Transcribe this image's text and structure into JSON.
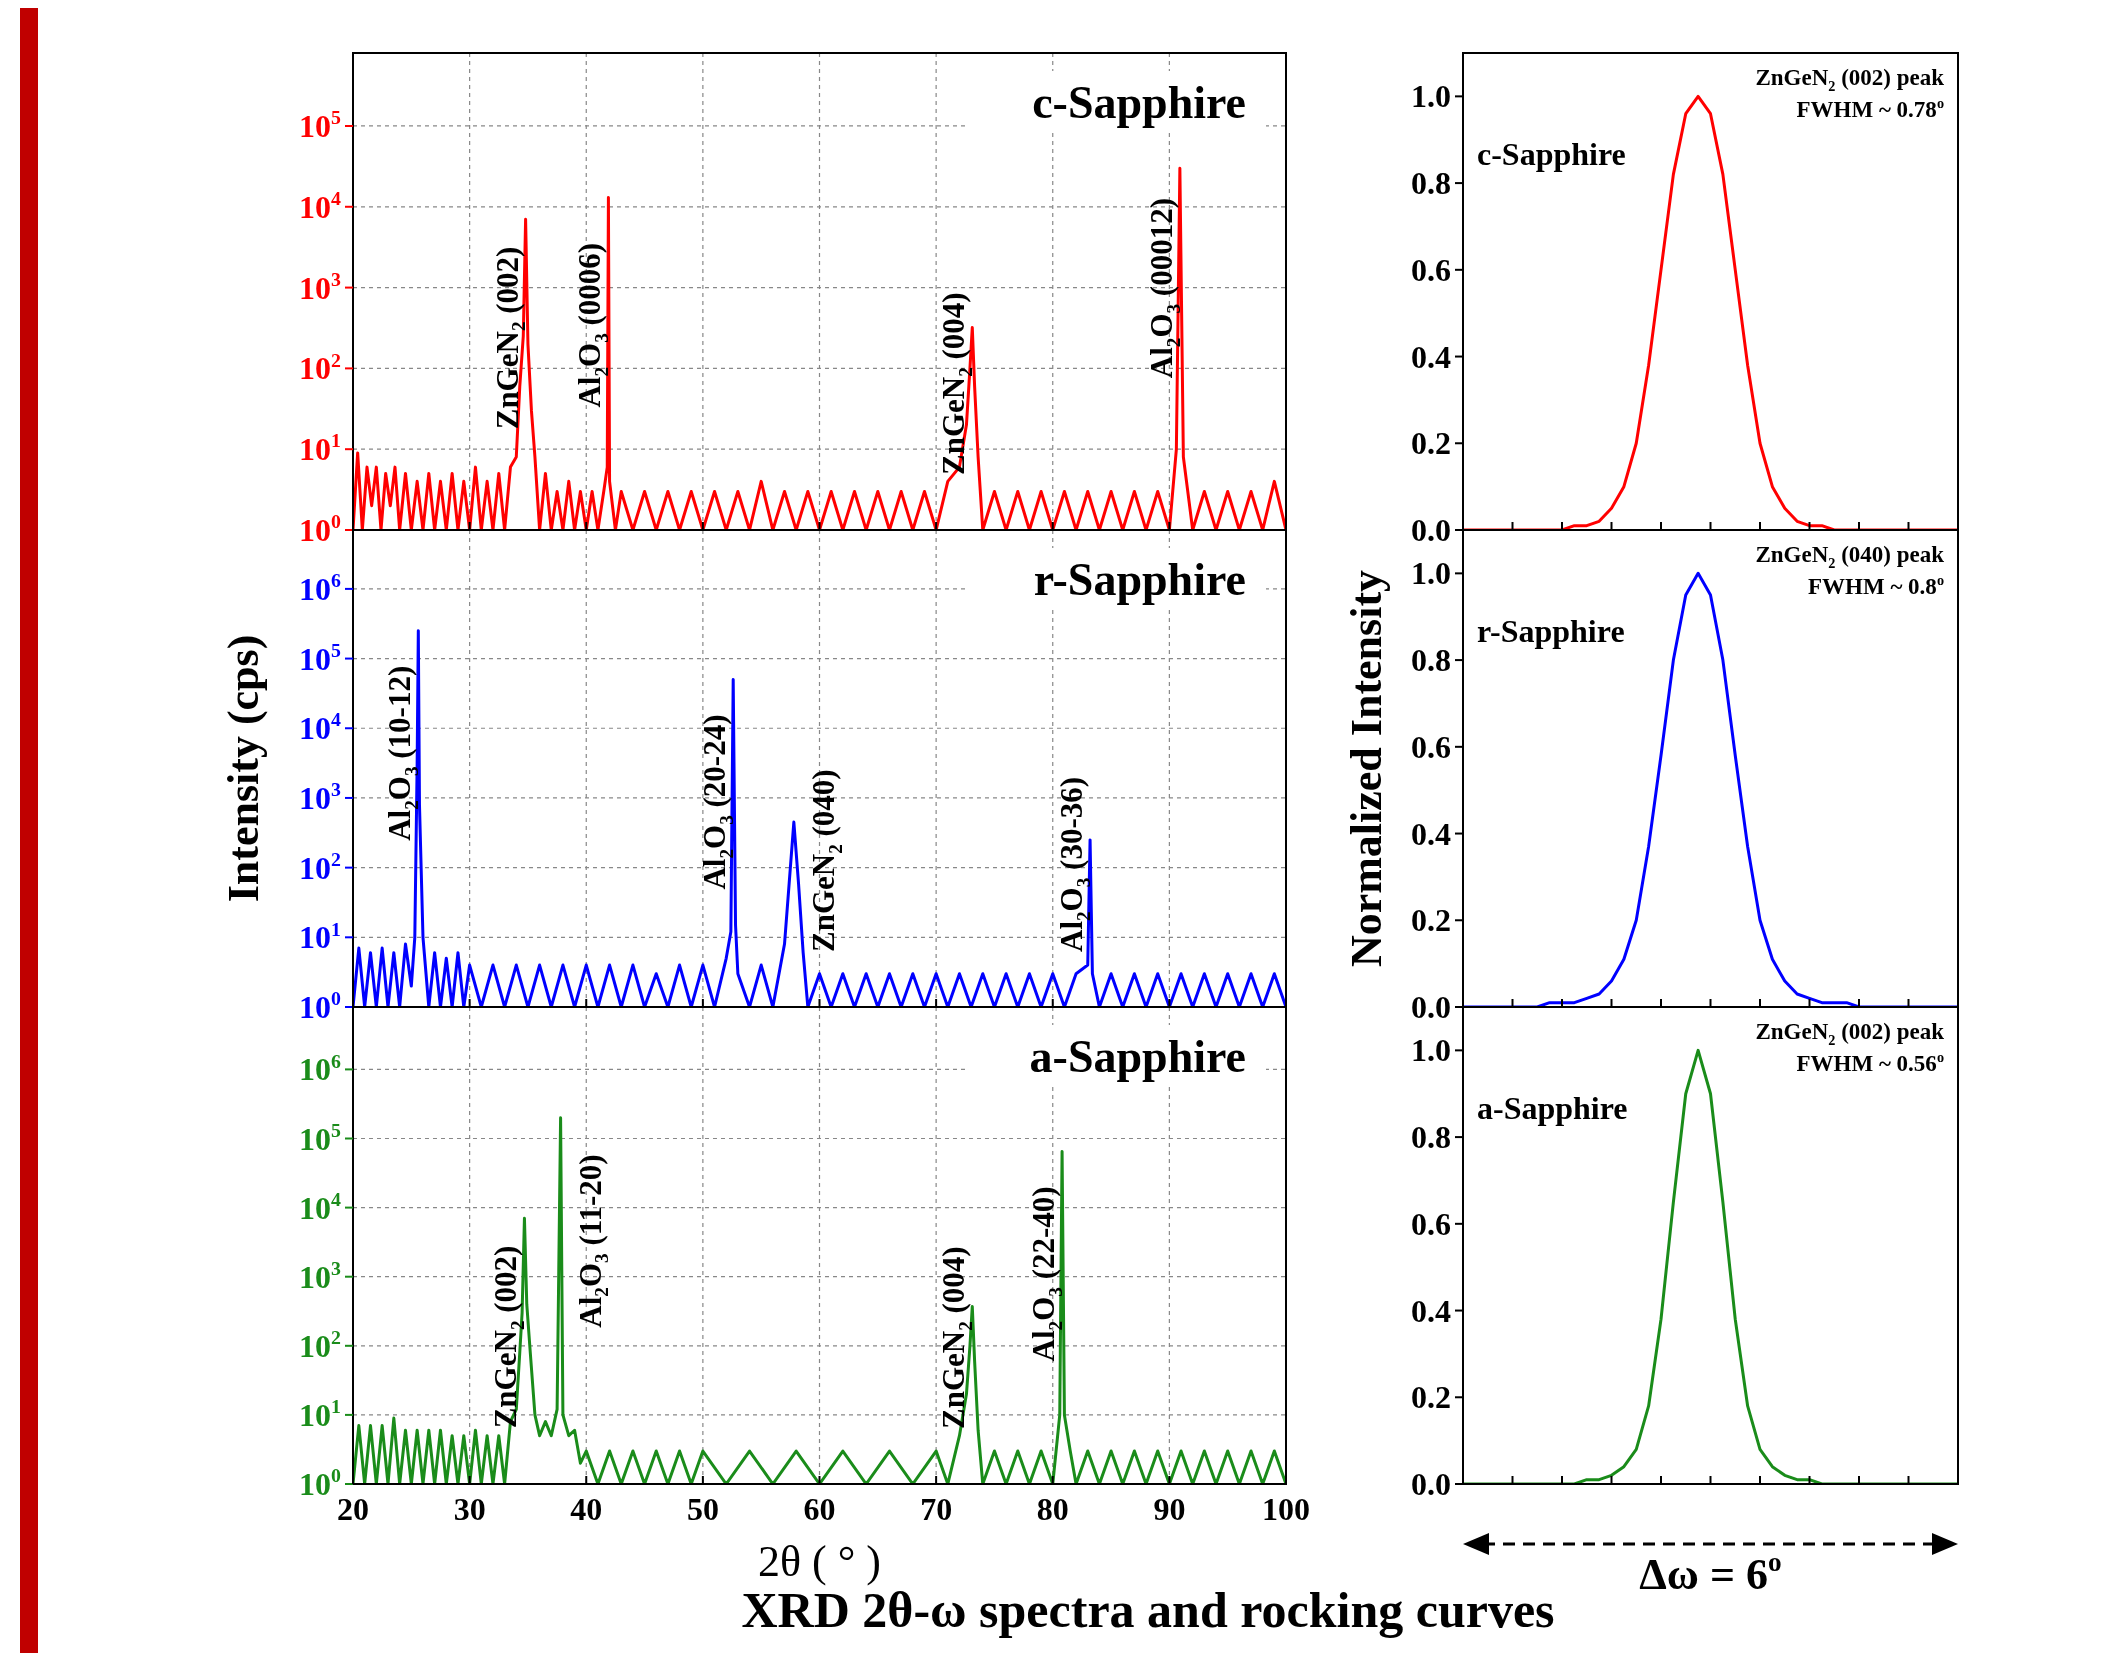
{
  "chart_data": [
    {
      "type": "line",
      "title": "c-Sapphire",
      "log": "y",
      "grid": true,
      "tick_labels": "y",
      "xlim": [
        20,
        100
      ],
      "xticks": [
        20,
        30,
        40,
        50,
        60,
        70,
        80,
        90,
        100
      ],
      "ylim": [
        1,
        800000
      ],
      "yticks": [
        {
          "value": 1,
          "label": "10$^{0}$"
        },
        {
          "value": 10,
          "label": "10$^{1}$"
        },
        {
          "value": 100,
          "label": "10$^{2}$"
        },
        {
          "value": 1000,
          "label": "10$^{3}$"
        },
        {
          "value": 10000,
          "label": "10$^{4}$"
        },
        {
          "value": 100000,
          "label": "10$^{5}$"
        }
      ],
      "series": [
        {
          "color": "#ff0000",
          "x": [
            20,
            20.4,
            20.8,
            21.2,
            21.6,
            22,
            22.4,
            22.8,
            23.2,
            23.6,
            24,
            24.5,
            25,
            25.5,
            26,
            26.5,
            27,
            27.5,
            28,
            28.5,
            29,
            29.5,
            30,
            30.5,
            31,
            31.5,
            32,
            32.5,
            33,
            33.5,
            34,
            34.3,
            34.6,
            34.8,
            35,
            35.3,
            35.6,
            36,
            36.5,
            37,
            37.5,
            38,
            38.5,
            39,
            39.5,
            40,
            40.5,
            41,
            41.5,
            41.8,
            41.9,
            42,
            42.5,
            43,
            44,
            45,
            46,
            47,
            48,
            49,
            50,
            51,
            52,
            53,
            54,
            55,
            56,
            57,
            58,
            59,
            60,
            61,
            62,
            63,
            64,
            65,
            66,
            67,
            68,
            69,
            70,
            71,
            72,
            72.6,
            72.9,
            73.1,
            73.3,
            73.6,
            74,
            75,
            76,
            77,
            78,
            79,
            80,
            81,
            82,
            83,
            84,
            85,
            86,
            87,
            88,
            89,
            90,
            90.6,
            90.9,
            91.2,
            92,
            93,
            94,
            95,
            96,
            97,
            98,
            99,
            100
          ],
          "values": [
            1,
            9,
            1,
            6,
            2,
            6,
            1,
            5,
            2,
            6,
            1,
            5,
            1,
            4,
            1,
            5,
            1,
            4,
            1,
            5,
            1,
            4,
            1,
            6,
            1,
            4,
            1,
            5,
            1,
            6,
            8,
            60,
            250,
            7000,
            200,
            30,
            8,
            1,
            5,
            1,
            3,
            1,
            4,
            1,
            3,
            1,
            3,
            1,
            3,
            6,
            13000,
            4,
            1,
            3,
            1,
            3,
            1,
            3,
            1,
            3,
            1,
            3,
            1,
            3,
            1,
            4,
            1,
            3,
            1,
            3,
            1,
            3,
            1,
            3,
            1,
            3,
            1,
            3,
            1,
            3,
            1,
            4,
            6,
            20,
            100,
            320,
            60,
            8,
            1,
            3,
            1,
            3,
            1,
            3,
            1,
            3,
            1,
            3,
            1,
            3,
            1,
            3,
            1,
            3,
            1,
            10,
            30000,
            8,
            1,
            3,
            1,
            3,
            1,
            3,
            1,
            4,
            1
          ]
        }
      ],
      "annotations": [
        {
          "text": "ZnGeN$_{2}$ (002)",
          "x": 34.8,
          "y": 7000
        },
        {
          "text": "Al$_{2}$O$_{3}$ (0006)",
          "x": 41.9,
          "y": 13000
        },
        {
          "text": "ZnGeN$_{2}$ (004)",
          "x": 73.1,
          "y": 320
        },
        {
          "text": "Al$_{2}$O$_{3}$ (00012)",
          "x": 90.9,
          "y": 30000
        }
      ]
    },
    {
      "type": "line",
      "title": "r-Sapphire",
      "ylabel": "Intensity (cps)",
      "log": "y",
      "grid": true,
      "tick_labels": "y",
      "xlim": [
        20,
        100
      ],
      "xticks": [
        20,
        30,
        40,
        50,
        60,
        70,
        80,
        90,
        100
      ],
      "ylim": [
        1,
        7000000
      ],
      "yticks": [
        {
          "value": 1,
          "label": "10$^{0}$"
        },
        {
          "value": 10,
          "label": "10$^{1}$"
        },
        {
          "value": 100,
          "label": "10$^{2}$"
        },
        {
          "value": 1000,
          "label": "10$^{3}$"
        },
        {
          "value": 10000,
          "label": "10$^{4}$"
        },
        {
          "value": 100000,
          "label": "10$^{5}$"
        },
        {
          "value": 1000000,
          "label": "10$^{6}$"
        }
      ],
      "series": [
        {
          "color": "#0000ff",
          "x": [
            20,
            20.5,
            21,
            21.5,
            22,
            22.5,
            23,
            23.5,
            24,
            24.5,
            25,
            25.3,
            25.5,
            25.6,
            25.7,
            26,
            26.5,
            27,
            27.5,
            28,
            28.5,
            29,
            29.5,
            30,
            31,
            32,
            33,
            34,
            35,
            36,
            37,
            38,
            39,
            40,
            41,
            42,
            43,
            44,
            45,
            46,
            47,
            48,
            49,
            50,
            51,
            52,
            52.4,
            52.6,
            52.8,
            53,
            54,
            55,
            56,
            57,
            57.4,
            57.8,
            58.2,
            58.6,
            59,
            60,
            61,
            62,
            63,
            64,
            65,
            66,
            67,
            68,
            69,
            70,
            71,
            72,
            73,
            74,
            75,
            76,
            77,
            78,
            79,
            80,
            81,
            82,
            83,
            83.2,
            83.4,
            84,
            85,
            86,
            87,
            88,
            89,
            90,
            91,
            92,
            93,
            94,
            95,
            96,
            97,
            98,
            99,
            100
          ],
          "values": [
            1,
            7,
            1,
            6,
            1,
            7,
            1,
            6,
            1,
            8,
            2,
            10,
            3000,
            250000,
            800,
            10,
            1,
            6,
            1,
            5,
            1,
            6,
            1,
            4,
            1,
            4,
            1,
            4,
            1,
            4,
            1,
            4,
            1,
            4,
            1,
            4,
            1,
            4,
            1,
            3,
            1,
            4,
            1,
            4,
            1,
            5,
            12,
            50000,
            15,
            3,
            1,
            4,
            1,
            8,
            60,
            450,
            60,
            6,
            1,
            3,
            1,
            3,
            1,
            3,
            1,
            3,
            1,
            3,
            1,
            3,
            1,
            3,
            1,
            3,
            1,
            3,
            1,
            3,
            1,
            3,
            1,
            3,
            4,
            250,
            3,
            1,
            3,
            1,
            3,
            1,
            3,
            1,
            3,
            1,
            3,
            1,
            3,
            1,
            3,
            1,
            3,
            1
          ]
        }
      ],
      "annotations": [
        {
          "text": "Al$_{2}$O$_{3}$ (10-12)",
          "x": 25.6,
          "y": 250000
        },
        {
          "text": "Al$_{2}$O$_{3}$ (20-24)",
          "x": 52.6,
          "y": 50000
        },
        {
          "text": "ZnGeN$_{2}$ (040)",
          "x": 57.8,
          "y": 450
        },
        {
          "text": "Al$_{2}$O$_{3}$ (30-36)",
          "x": 83.2,
          "y": 250
        }
      ]
    },
    {
      "type": "line",
      "title": "a-Sapphire",
      "xlabel": "2θ ( ° )",
      "log": "y",
      "grid": true,
      "xlim": [
        20,
        100
      ],
      "xticks": [
        20,
        30,
        40,
        50,
        60,
        70,
        80,
        90,
        100
      ],
      "ylim": [
        1,
        8000000
      ],
      "yticks": [
        {
          "value": 1,
          "label": "10$^{0}$"
        },
        {
          "value": 10,
          "label": "10$^{1}$"
        },
        {
          "value": 100,
          "label": "10$^{2}$"
        },
        {
          "value": 1000,
          "label": "10$^{3}$"
        },
        {
          "value": 10000,
          "label": "10$^{4}$"
        },
        {
          "value": 100000,
          "label": "10$^{5}$"
        },
        {
          "value": 1000000,
          "label": "10$^{6}$"
        }
      ],
      "series": [
        {
          "color": "#1a8c1a",
          "x": [
            20,
            20.5,
            21,
            21.5,
            22,
            22.5,
            23,
            23.5,
            24,
            24.5,
            25,
            25.5,
            26,
            26.5,
            27,
            27.5,
            28,
            28.5,
            29,
            29.5,
            30,
            30.5,
            31,
            31.5,
            32,
            32.5,
            33,
            33.5,
            34,
            34.3,
            34.5,
            34.7,
            34.9,
            35.2,
            35.6,
            36,
            36.5,
            37,
            37.5,
            37.8,
            38,
            38.5,
            39,
            39.5,
            40,
            41,
            42,
            43,
            44,
            45,
            46,
            47,
            48,
            49,
            50,
            52,
            54,
            56,
            58,
            60,
            62,
            64,
            66,
            68,
            70,
            71,
            72,
            72.6,
            72.9,
            73.1,
            73.3,
            73.6,
            74,
            75,
            76,
            77,
            78,
            79,
            80,
            80.6,
            80.8,
            81,
            81.5,
            82,
            83,
            84,
            85,
            86,
            87,
            88,
            89,
            90,
            91,
            92,
            93,
            94,
            95,
            96,
            97,
            98,
            99,
            100
          ],
          "values": [
            1,
            7,
            1,
            7,
            1,
            7,
            1,
            9,
            1,
            6,
            1,
            6,
            1,
            6,
            1,
            6,
            1,
            5,
            1,
            5,
            1,
            6,
            1,
            5,
            1,
            5,
            1,
            8,
            12,
            80,
            300,
            7000,
            400,
            80,
            10,
            5,
            8,
            5,
            12,
            200000,
            10,
            5,
            6,
            2,
            3,
            1,
            3,
            1,
            3,
            1,
            3,
            1,
            3,
            1,
            3,
            1,
            3,
            1,
            3,
            1,
            3,
            1,
            3,
            1,
            3,
            1,
            5,
            20,
            100,
            370,
            60,
            6,
            1,
            3,
            1,
            3,
            1,
            3,
            1,
            10,
            65000,
            10,
            3,
            1,
            3,
            1,
            3,
            1,
            3,
            1,
            3,
            1,
            3,
            1,
            3,
            1,
            3,
            1,
            3,
            1,
            3,
            1
          ]
        }
      ],
      "annotations": [
        {
          "text": "ZnGeN$_{2}$ (002)",
          "x": 34.7,
          "y": 7000
        },
        {
          "text": "Al$_{2}$O$_{3}$ (11-20)",
          "x": 37.8,
          "y": 200000
        },
        {
          "text": "ZnGeN$_{2}$ (004)",
          "x": 73.1,
          "y": 370
        },
        {
          "text": "Al$_{2}$O$_{3}$ (22-40)",
          "x": 80.8,
          "y": 65000
        },
        "XRD 2θ-ω spectra and rocking curves"
      ]
    },
    {
      "type": "line",
      "title": "c-Sapphire",
      "tick_labels": "y",
      "categories": [
        null,
        null,
        null,
        null,
        null,
        null,
        null,
        null,
        null,
        null,
        null,
        null,
        null,
        null,
        null,
        null,
        null,
        null,
        null,
        null,
        null,
        null,
        null,
        null,
        null,
        null,
        null,
        null,
        null,
        null,
        null,
        null,
        null,
        null,
        null,
        null,
        null,
        null,
        null,
        null,
        null
      ],
      "ylim": [
        0,
        1.1
      ],
      "yticks": [
        {
          "value": 0,
          "label": "0.0"
        },
        {
          "value": 0.2,
          "label": "0.2"
        },
        {
          "value": 0.4,
          "label": "0.4"
        },
        {
          "value": 0.6,
          "label": "0.6"
        },
        {
          "value": 0.8,
          "label": "0.8"
        },
        {
          "value": 1,
          "label": "1.0"
        }
      ],
      "series": [
        {
          "color": "#ff0000",
          "values": [
            0,
            0,
            0,
            0,
            0,
            0,
            0,
            0,
            0,
            0.01,
            0.01,
            0.02,
            0.05,
            0.1,
            0.2,
            0.38,
            0.6,
            0.82,
            0.96,
            1.0,
            0.96,
            0.82,
            0.6,
            0.38,
            0.2,
            0.1,
            0.05,
            0.02,
            0.01,
            0.01,
            0,
            0,
            0,
            0,
            0,
            0,
            0,
            0,
            0,
            0,
            0
          ]
        }
      ],
      "annotations": [
        "ZnGeN$_{2}$ (002) peak",
        "FWHM ~ 0.78$^{o}$"
      ]
    },
    {
      "type": "line",
      "title": "r-Sapphire",
      "ylabel": "Normalized Intensity",
      "tick_labels": "y",
      "categories": [
        null,
        null,
        null,
        null,
        null,
        null,
        null,
        null,
        null,
        null,
        null,
        null,
        null,
        null,
        null,
        null,
        null,
        null,
        null,
        null,
        null,
        null,
        null,
        null,
        null,
        null,
        null,
        null,
        null,
        null,
        null,
        null,
        null,
        null,
        null,
        null,
        null,
        null,
        null,
        null,
        null
      ],
      "ylim": [
        0,
        1.1
      ],
      "yticks": [
        {
          "value": 0,
          "label": "0.0"
        },
        {
          "value": 0.2,
          "label": "0.2"
        },
        {
          "value": 0.4,
          "label": "0.4"
        },
        {
          "value": 0.6,
          "label": "0.6"
        },
        {
          "value": 0.8,
          "label": "0.8"
        },
        {
          "value": 1,
          "label": "1.0"
        }
      ],
      "series": [
        {
          "color": "#0000ff",
          "values": [
            0,
            0,
            0,
            0,
            0,
            0,
            0,
            0.01,
            0.01,
            0.01,
            0.02,
            0.03,
            0.06,
            0.11,
            0.2,
            0.37,
            0.58,
            0.8,
            0.95,
            1.0,
            0.95,
            0.8,
            0.58,
            0.37,
            0.2,
            0.11,
            0.06,
            0.03,
            0.02,
            0.01,
            0.01,
            0.01,
            0,
            0,
            0,
            0,
            0,
            0,
            0,
            0,
            0
          ]
        }
      ],
      "annotations": [
        "ZnGeN$_{2}$ (040) peak",
        "FWHM ~ 0.8$^{o}$"
      ]
    },
    {
      "type": "line",
      "title": "a-Sapphire",
      "xlabel": "Δω = 6$^{o}$",
      "tick_labels": "y",
      "categories": [
        null,
        null,
        null,
        null,
        null,
        null,
        null,
        null,
        null,
        null,
        null,
        null,
        null,
        null,
        null,
        null,
        null,
        null,
        null,
        null,
        null,
        null,
        null,
        null,
        null,
        null,
        null,
        null,
        null,
        null,
        null,
        null,
        null,
        null,
        null,
        null,
        null,
        null,
        null,
        null,
        null
      ],
      "ylim": [
        0,
        1.1
      ],
      "yticks": [
        {
          "value": 0,
          "label": "0.0"
        },
        {
          "value": 0.2,
          "label": "0.2"
        },
        {
          "value": 0.4,
          "label": "0.4"
        },
        {
          "value": 0.6,
          "label": "0.6"
        },
        {
          "value": 0.8,
          "label": "0.8"
        },
        {
          "value": 1,
          "label": "1.0"
        }
      ],
      "series": [
        {
          "color": "#1a8c1a",
          "values": [
            0,
            0,
            0,
            0,
            0,
            0,
            0,
            0,
            0,
            0,
            0.01,
            0.01,
            0.02,
            0.04,
            0.08,
            0.18,
            0.38,
            0.65,
            0.9,
            1.0,
            0.9,
            0.65,
            0.38,
            0.18,
            0.08,
            0.04,
            0.02,
            0.01,
            0.01,
            0,
            0,
            0,
            0,
            0,
            0,
            0,
            0,
            0,
            0,
            0,
            0
          ]
        }
      ],
      "annotations": [
        "ZnGeN$_{2}$ (002) peak",
        "FWHM ~ 0.56$^{o}$"
      ]
    }
  ]
}
